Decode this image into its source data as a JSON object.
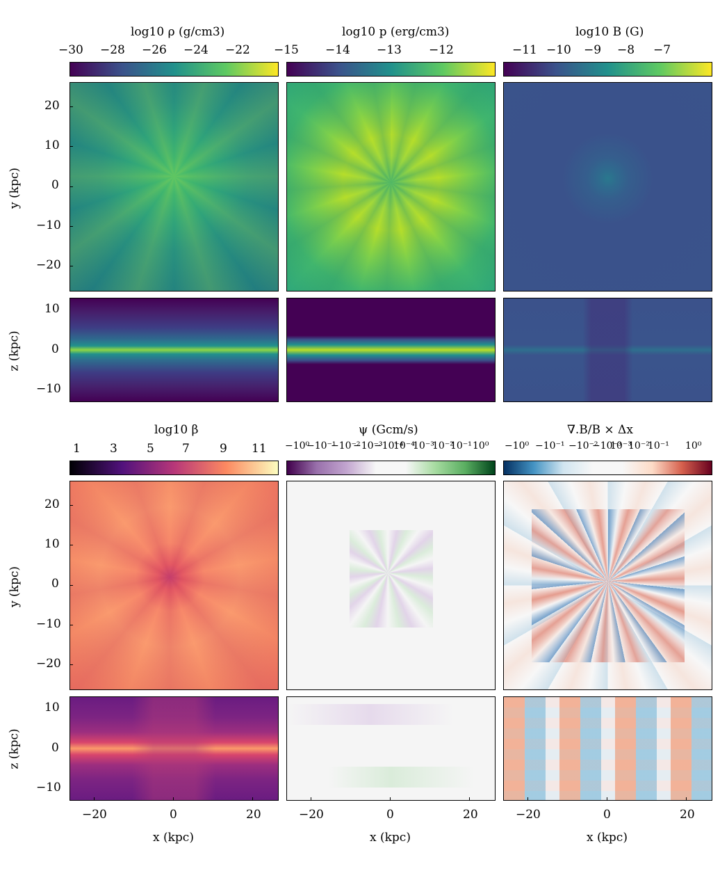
{
  "chart_data": [
    {
      "type": "heatmap",
      "title": "log10 ρ (g/cm3)",
      "colormap": "viridis",
      "colorbar_ticks": [
        "−30",
        "−28",
        "−26",
        "−24",
        "−22",
        "−15"
      ],
      "panels": [
        {
          "view": "face-on",
          "ylabel": "y (kpc)",
          "ytick_labels": [
            "20",
            "10",
            "0",
            "−10",
            "−20"
          ]
        },
        {
          "view": "edge-on",
          "ylabel": "z (kpc)",
          "ytick_labels": [
            "10",
            "0",
            "−10"
          ]
        }
      ]
    },
    {
      "type": "heatmap",
      "title": "log10 p (erg/cm3)",
      "colormap": "viridis",
      "colorbar_ticks": [
        "−14",
        "−13",
        "−12"
      ],
      "panels": [
        {
          "view": "face-on"
        },
        {
          "view": "edge-on"
        }
      ]
    },
    {
      "type": "heatmap",
      "title": "log10 B (G)",
      "colormap": "viridis",
      "colorbar_ticks": [
        "−11",
        "−10",
        "−9",
        "−8",
        "−7"
      ],
      "panels": [
        {
          "view": "face-on"
        },
        {
          "view": "edge-on"
        }
      ]
    },
    {
      "type": "heatmap",
      "title": "log10 β",
      "colormap": "magma",
      "colorbar_ticks": [
        "1",
        "3",
        "5",
        "7",
        "9",
        "11"
      ],
      "panels": [
        {
          "view": "face-on",
          "ylabel": "y (kpc)",
          "ytick_labels": [
            "20",
            "10",
            "0",
            "−10",
            "−20"
          ]
        },
        {
          "view": "edge-on",
          "ylabel": "z (kpc)",
          "ytick_labels": [
            "10",
            "0",
            "−10"
          ],
          "xlabel": "x (kpc)",
          "xtick_labels": [
            "−20",
            "0",
            "20"
          ]
        }
      ]
    },
    {
      "type": "heatmap",
      "title": "ψ (Gcm/s)",
      "colormap": "PRGn",
      "colorbar_ticks": [
        "−10⁰",
        "−10⁻¹",
        "−10⁻²",
        "−10⁻³",
        "−10⁻⁴",
        "10⁻⁴",
        "10⁻³",
        "10⁻²",
        "10⁻¹",
        "10⁰"
      ],
      "colorbar_scale": "symlog",
      "panels": [
        {
          "view": "face-on"
        },
        {
          "view": "edge-on",
          "xlabel": "x (kpc)",
          "xtick_labels": [
            "−20",
            "0",
            "20"
          ]
        }
      ]
    },
    {
      "type": "heatmap",
      "title": "∇.B/B × Δx",
      "colormap": "RdBu_r",
      "colorbar_ticks": [
        "−10⁰",
        "−10⁻¹",
        "−10⁻²",
        "−10⁻³",
        "10⁻³",
        "10⁻²",
        "10⁻¹",
        "10⁰"
      ],
      "colorbar_scale": "symlog",
      "panels": [
        {
          "view": "face-on"
        },
        {
          "view": "edge-on",
          "xlabel": "x (kpc)",
          "xtick_labels": [
            "−20",
            "0",
            "20"
          ]
        }
      ]
    }
  ],
  "labels": {
    "rho_title": "log10 ρ (g/cm3)",
    "p_title": "log10 p (erg/cm3)",
    "B_title": "log10 B (G)",
    "beta_title": "log10 β",
    "psi_title": "ψ (Gcm/s)",
    "divb_title": "∇.B/B × Δx",
    "y_label": "y (kpc)",
    "z_label": "z (kpc)",
    "x_label": "x (kpc)"
  },
  "ticks": {
    "rho": [
      "−30",
      "−28",
      "−26",
      "−24",
      "−22",
      "−15"
    ],
    "p": [
      "−14",
      "−13",
      "−12"
    ],
    "B": [
      "−11",
      "−10",
      "−9",
      "−8",
      "−7"
    ],
    "beta": [
      "1",
      "3",
      "5",
      "7",
      "9",
      "11"
    ],
    "psi": [
      "−10⁰",
      "−10⁻¹",
      "−10⁻²",
      "−10⁻³",
      "−10⁻⁴",
      "10⁻⁴",
      "10⁻³",
      "10⁻²",
      "10⁻¹",
      "10⁰"
    ],
    "divb": [
      "−10⁰",
      "−10⁻¹",
      "−10⁻²",
      "−10⁻³",
      "10⁻³",
      "10⁻²",
      "10⁻¹",
      "10⁰"
    ],
    "y_face": [
      "20",
      "10",
      "0",
      "−10",
      "−20"
    ],
    "z_edge": [
      "10",
      "0",
      "−10"
    ],
    "x": [
      "−20",
      "0",
      "20"
    ]
  },
  "colors": {
    "viridis": [
      "#440154",
      "#3b528b",
      "#21918c",
      "#5ec962",
      "#fde725"
    ],
    "magma": [
      "#000004",
      "#51127c",
      "#b73779",
      "#fc8961",
      "#fcfdbf"
    ],
    "prgn": [
      "#40004b",
      "#c2a5cf",
      "#f7f7f7",
      "#a6dba0",
      "#00441b"
    ],
    "rdbu_r": [
      "#053061",
      "#4393c3",
      "#f7f7f7",
      "#d6604d",
      "#67001f"
    ]
  }
}
